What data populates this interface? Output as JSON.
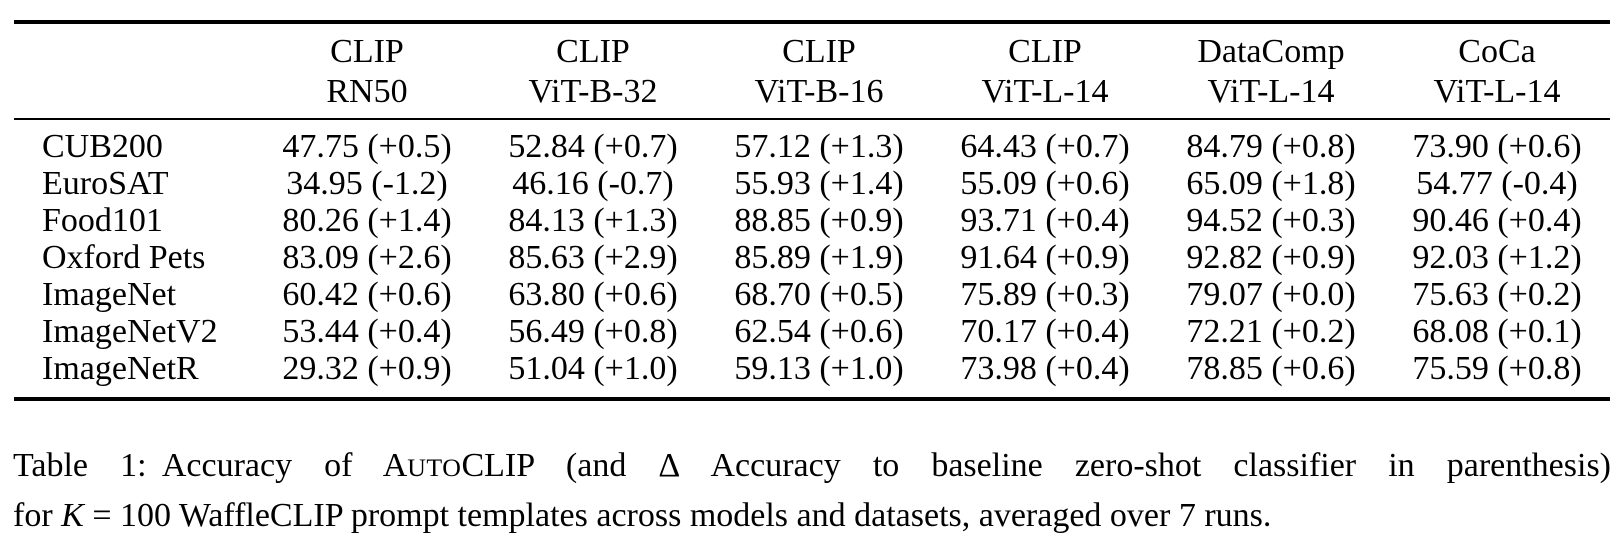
{
  "colors": {
    "background": "#ffffff",
    "text": "#000000",
    "rule": "#000000"
  },
  "table": {
    "columns": [
      {
        "line1": "CLIP",
        "line2": "RN50"
      },
      {
        "line1": "CLIP",
        "line2": "ViT-B-32"
      },
      {
        "line1": "CLIP",
        "line2": "ViT-B-16"
      },
      {
        "line1": "CLIP",
        "line2": "ViT-L-14"
      },
      {
        "line1": "DataComp",
        "line2": "ViT-L-14"
      },
      {
        "line1": "CoCa",
        "line2": "ViT-L-14"
      }
    ],
    "rows": [
      {
        "dataset": "CUB200",
        "values": [
          "47.75 (+0.5)",
          "52.84 (+0.7)",
          "57.12 (+1.3)",
          "64.43 (+0.7)",
          "84.79 (+0.8)",
          "73.90 (+0.6)"
        ]
      },
      {
        "dataset": "EuroSAT",
        "values": [
          "34.95 (-1.2)",
          "46.16 (-0.7)",
          "55.93 (+1.4)",
          "55.09 (+0.6)",
          "65.09 (+1.8)",
          "54.77 (-0.4)"
        ]
      },
      {
        "dataset": "Food101",
        "values": [
          "80.26 (+1.4)",
          "84.13 (+1.3)",
          "88.85 (+0.9)",
          "93.71 (+0.4)",
          "94.52 (+0.3)",
          "90.46 (+0.4)"
        ]
      },
      {
        "dataset": "Oxford Pets",
        "values": [
          "83.09 (+2.6)",
          "85.63 (+2.9)",
          "85.89 (+1.9)",
          "91.64 (+0.9)",
          "92.82 (+0.9)",
          "92.03 (+1.2)"
        ]
      },
      {
        "dataset": "ImageNet",
        "values": [
          "60.42 (+0.6)",
          "63.80 (+0.6)",
          "68.70 (+0.5)",
          "75.89 (+0.3)",
          "79.07 (+0.0)",
          "75.63 (+0.2)"
        ]
      },
      {
        "dataset": "ImageNetV2",
        "values": [
          "53.44 (+0.4)",
          "56.49 (+0.8)",
          "62.54 (+0.6)",
          "70.17 (+0.4)",
          "72.21 (+0.2)",
          "68.08 (+0.1)"
        ]
      },
      {
        "dataset": "ImageNetR",
        "values": [
          "29.32 (+0.9)",
          "51.04 (+1.0)",
          "59.13 (+1.0)",
          "73.98 (+0.4)",
          "78.85 (+0.6)",
          "75.59 (+0.8)"
        ]
      }
    ]
  },
  "caption": {
    "line1": {
      "label": "Table 1:",
      "before_sc": "Accuracy of A",
      "smallcaps": "UTO",
      "after_sc": "CLIP (and Δ Accuracy to baseline zero-shot classifier in parenthesis)"
    },
    "line2": {
      "before_k": "for ",
      "k": "K",
      "after_k": " = 100 WaffleCLIP prompt templates across models and datasets, averaged over 7 runs."
    }
  }
}
